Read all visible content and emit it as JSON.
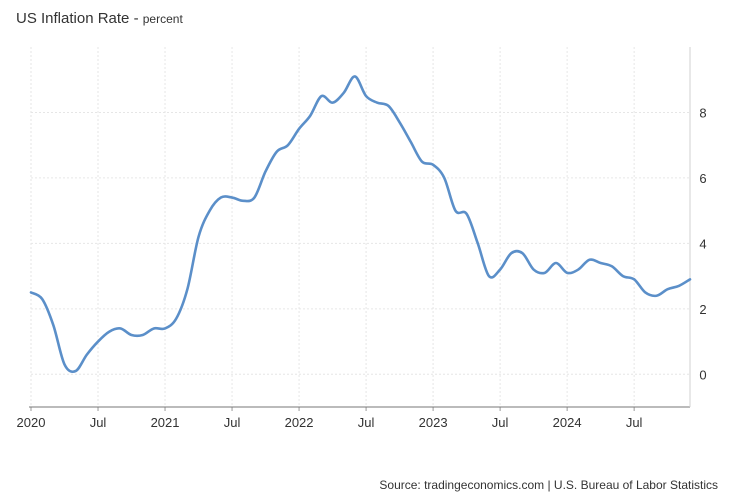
{
  "chart_data": {
    "type": "line",
    "title": "US Inflation Rate",
    "subtitle": "percent",
    "xlabel": "",
    "ylabel": "",
    "xlim": [
      2020.0,
      2024.9167
    ],
    "ylim": [
      -1,
      10
    ],
    "yticks": [
      "0",
      "2",
      "4",
      "6",
      "8"
    ],
    "ytick_values": [
      0,
      2,
      4,
      6,
      8
    ],
    "xticks": [
      {
        "t": 2020.0,
        "label": "2020"
      },
      {
        "t": 2020.5,
        "label": "Jul"
      },
      {
        "t": 2021.0,
        "label": "2021"
      },
      {
        "t": 2021.5,
        "label": "Jul"
      },
      {
        "t": 2022.0,
        "label": "2022"
      },
      {
        "t": 2022.5,
        "label": "Jul"
      },
      {
        "t": 2023.0,
        "label": "2023"
      },
      {
        "t": 2023.5,
        "label": "Jul"
      },
      {
        "t": 2024.0,
        "label": "2024"
      },
      {
        "t": 2024.5,
        "label": "Jul"
      }
    ],
    "grid": true,
    "line_color": "#5b8fc9",
    "series": [
      {
        "name": "",
        "x": [
          2020.0,
          2020.0833,
          2020.1667,
          2020.25,
          2020.3333,
          2020.4167,
          2020.5,
          2020.5833,
          2020.6667,
          2020.75,
          2020.8333,
          2020.9167,
          2021.0,
          2021.0833,
          2021.1667,
          2021.25,
          2021.3333,
          2021.4167,
          2021.5,
          2021.5833,
          2021.6667,
          2021.75,
          2021.8333,
          2021.9167,
          2022.0,
          2022.0833,
          2022.1667,
          2022.25,
          2022.3333,
          2022.4167,
          2022.5,
          2022.5833,
          2022.6667,
          2022.75,
          2022.8333,
          2022.9167,
          2023.0,
          2023.0833,
          2023.1667,
          2023.25,
          2023.3333,
          2023.4167,
          2023.5,
          2023.5833,
          2023.6667,
          2023.75,
          2023.8333,
          2023.9167,
          2024.0,
          2024.0833,
          2024.1667,
          2024.25,
          2024.3333,
          2024.4167,
          2024.5,
          2024.5833,
          2024.6667,
          2024.75,
          2024.8333,
          2024.9167
        ],
        "values": [
          2.5,
          2.3,
          1.5,
          0.3,
          0.1,
          0.6,
          1.0,
          1.3,
          1.4,
          1.2,
          1.2,
          1.4,
          1.4,
          1.7,
          2.6,
          4.2,
          5.0,
          5.4,
          5.4,
          5.3,
          5.4,
          6.2,
          6.8,
          7.0,
          7.5,
          7.9,
          8.5,
          8.3,
          8.6,
          9.1,
          8.5,
          8.3,
          8.2,
          7.7,
          7.1,
          6.5,
          6.4,
          6.0,
          5.0,
          4.9,
          4.0,
          3.0,
          3.2,
          3.7,
          3.7,
          3.2,
          3.1,
          3.4,
          3.1,
          3.2,
          3.5,
          3.4,
          3.3,
          3.0,
          2.9,
          2.5,
          2.4,
          2.6,
          2.7,
          2.9
        ]
      }
    ]
  },
  "source": "Source: tradingeconomics.com | U.S. Bureau of Labor Statistics"
}
